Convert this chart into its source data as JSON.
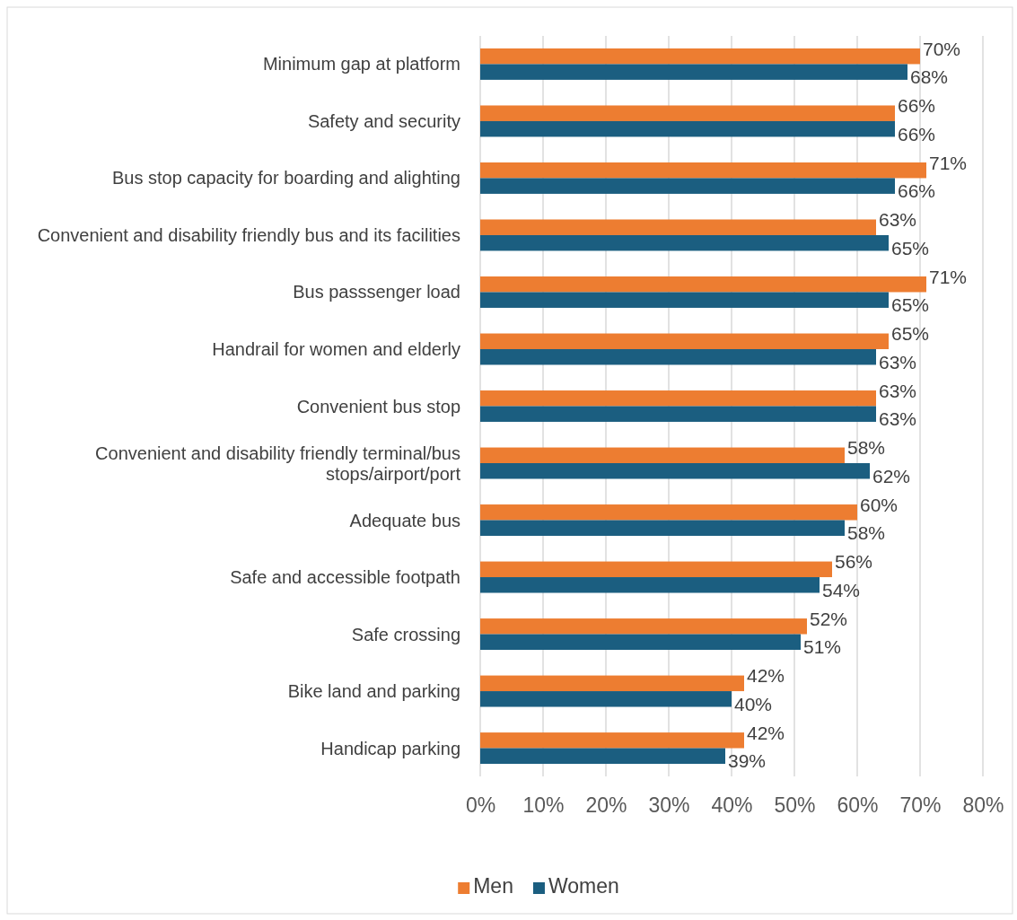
{
  "chart_data": {
    "type": "bar",
    "orientation": "horizontal",
    "categories": [
      "Minimum gap at platform",
      "Safety and security",
      "Bus stop capacity for boarding and alighting",
      "Convenient and disability friendly bus and its facilities",
      "Bus passsenger load",
      "Handrail for women and elderly",
      "Convenient bus stop",
      "Convenient and disability friendly terminal/bus stops/airport/port",
      "Adequate bus",
      "Safe and accessible footpath",
      "Safe crossing",
      "Bike land and parking",
      "Handicap parking"
    ],
    "series": [
      {
        "name": "Men",
        "color": "#ed7d31",
        "values": [
          70,
          66,
          71,
          63,
          71,
          65,
          63,
          58,
          60,
          56,
          52,
          42,
          42
        ],
        "value_labels": [
          "70%",
          "66%",
          "71%",
          "63%",
          "71%",
          "65%",
          "63%",
          "58%",
          "60%",
          "56%",
          "52%",
          "42%",
          "42%"
        ]
      },
      {
        "name": "Women",
        "color": "#1b5e80",
        "values": [
          68,
          66,
          66,
          65,
          65,
          63,
          63,
          62,
          58,
          54,
          51,
          40,
          39
        ],
        "value_labels": [
          "68%",
          "66%",
          "66%",
          "65%",
          "65%",
          "63%",
          "63%",
          "62%",
          "58%",
          "54%",
          "51%",
          "40%",
          "39%"
        ]
      }
    ],
    "xlim": [
      0,
      80
    ],
    "xticks": [
      {
        "value": 0,
        "label": "0%"
      },
      {
        "value": 10,
        "label": "10%"
      },
      {
        "value": 20,
        "label": "20%"
      },
      {
        "value": 30,
        "label": "30%"
      },
      {
        "value": 40,
        "label": "40%"
      },
      {
        "value": 50,
        "label": "50%"
      },
      {
        "value": 60,
        "label": "60%"
      },
      {
        "value": 70,
        "label": "70%"
      },
      {
        "value": 80,
        "label": "80%"
      }
    ],
    "grid": "x",
    "legend": "bottom"
  }
}
